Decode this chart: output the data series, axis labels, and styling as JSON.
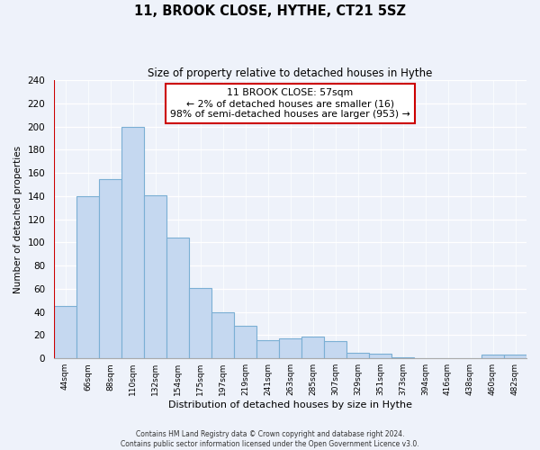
{
  "title": "11, BROOK CLOSE, HYTHE, CT21 5SZ",
  "subtitle": "Size of property relative to detached houses in Hythe",
  "xlabel": "Distribution of detached houses by size in Hythe",
  "ylabel": "Number of detached properties",
  "bar_labels": [
    "44sqm",
    "66sqm",
    "88sqm",
    "110sqm",
    "132sqm",
    "154sqm",
    "175sqm",
    "197sqm",
    "219sqm",
    "241sqm",
    "263sqm",
    "285sqm",
    "307sqm",
    "329sqm",
    "351sqm",
    "373sqm",
    "394sqm",
    "416sqm",
    "438sqm",
    "460sqm",
    "482sqm"
  ],
  "bar_values": [
    45,
    140,
    155,
    200,
    141,
    104,
    61,
    40,
    28,
    16,
    17,
    19,
    15,
    5,
    4,
    1,
    0,
    0,
    0,
    3,
    3
  ],
  "bar_color": "#c5d8f0",
  "bar_edge_color": "#7bafd4",
  "annotation_box_text": "11 BROOK CLOSE: 57sqm\n← 2% of detached houses are smaller (16)\n98% of semi-detached houses are larger (953) →",
  "annotation_box_edge_color": "#cc0000",
  "marker_line_color": "#cc0000",
  "ylim": [
    0,
    240
  ],
  "yticks": [
    0,
    20,
    40,
    60,
    80,
    100,
    120,
    140,
    160,
    180,
    200,
    220,
    240
  ],
  "footer_line1": "Contains HM Land Registry data © Crown copyright and database right 2024.",
  "footer_line2": "Contains public sector information licensed under the Open Government Licence v3.0.",
  "bg_color": "#eef2fa"
}
